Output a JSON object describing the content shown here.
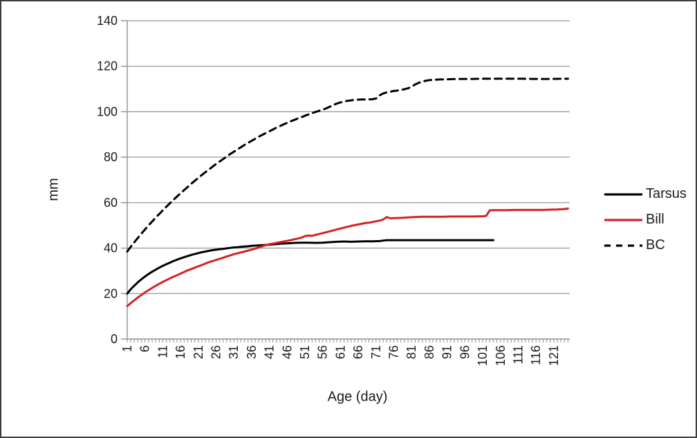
{
  "window": {
    "background": "#ffffff",
    "border_color": "#3c3c3c"
  },
  "chart_data": {
    "type": "line",
    "title": "",
    "xlabel": "Age (day)",
    "ylabel": "mm",
    "xlim": [
      1,
      125.5
    ],
    "ylim": [
      0,
      140
    ],
    "y_ticks": [
      0,
      20,
      40,
      60,
      80,
      100,
      120,
      140
    ],
    "x_tick_labels": [
      1,
      6,
      11,
      16,
      21,
      26,
      31,
      36,
      41,
      46,
      51,
      56,
      61,
      66,
      71,
      76,
      81,
      86,
      91,
      96,
      101,
      106,
      111,
      116,
      121
    ],
    "x_minor_tick_every_day": true,
    "grid": "horizontal",
    "legend_position": "right",
    "axis_color": "#8f8f8f",
    "grid_color": "#999999",
    "text_color": "#1a1a1a",
    "series": [
      {
        "name": "Tarsus",
        "color": "#000000",
        "style": "solid",
        "points": [
          [
            1,
            20.0
          ],
          [
            2,
            21.9
          ],
          [
            3,
            23.5
          ],
          [
            4,
            25.0
          ],
          [
            5,
            26.3
          ],
          [
            6,
            27.5
          ],
          [
            7,
            28.6
          ],
          [
            8,
            29.6
          ],
          [
            9,
            30.5
          ],
          [
            10,
            31.4
          ],
          [
            11,
            32.2
          ],
          [
            12,
            32.9
          ],
          [
            13,
            33.6
          ],
          [
            14,
            34.3
          ],
          [
            15,
            34.9
          ],
          [
            16,
            35.5
          ],
          [
            17,
            36.0
          ],
          [
            18,
            36.5
          ],
          [
            19,
            37.0
          ],
          [
            20,
            37.4
          ],
          [
            21,
            37.8
          ],
          [
            22,
            38.2
          ],
          [
            23,
            38.5
          ],
          [
            24,
            38.8
          ],
          [
            25,
            39.1
          ],
          [
            26,
            39.3
          ],
          [
            27,
            39.5
          ],
          [
            28,
            39.7
          ],
          [
            29,
            39.9
          ],
          [
            30,
            40.1
          ],
          [
            31,
            40.3
          ],
          [
            32,
            40.4
          ],
          [
            33,
            40.6
          ],
          [
            34,
            40.7
          ],
          [
            35,
            40.8
          ],
          [
            36,
            41.0
          ],
          [
            37,
            41.1
          ],
          [
            38,
            41.2
          ],
          [
            39,
            41.3
          ],
          [
            40,
            41.4
          ],
          [
            42,
            41.6
          ],
          [
            44,
            41.9
          ],
          [
            46,
            42.1
          ],
          [
            48,
            42.3
          ],
          [
            50,
            42.4
          ],
          [
            52,
            42.4
          ],
          [
            54,
            42.3
          ],
          [
            56,
            42.4
          ],
          [
            58,
            42.6
          ],
          [
            60,
            42.8
          ],
          [
            62,
            42.9
          ],
          [
            64,
            42.8
          ],
          [
            66,
            42.9
          ],
          [
            68,
            43.0
          ],
          [
            70,
            43.0
          ],
          [
            72,
            43.1
          ],
          [
            73,
            43.3
          ],
          [
            74,
            43.5
          ],
          [
            76,
            43.5
          ],
          [
            80,
            43.5
          ],
          [
            84,
            43.5
          ],
          [
            88,
            43.5
          ],
          [
            92,
            43.5
          ],
          [
            96,
            43.5
          ],
          [
            100,
            43.5
          ],
          [
            104,
            43.5
          ]
        ]
      },
      {
        "name": "Bill",
        "color": "#d42226",
        "style": "solid",
        "points": [
          [
            1,
            14.5
          ],
          [
            2,
            15.8
          ],
          [
            3,
            17.1
          ],
          [
            4,
            18.3
          ],
          [
            5,
            19.4
          ],
          [
            6,
            20.5
          ],
          [
            7,
            21.5
          ],
          [
            8,
            22.5
          ],
          [
            9,
            23.4
          ],
          [
            10,
            24.3
          ],
          [
            11,
            25.1
          ],
          [
            12,
            25.9
          ],
          [
            13,
            26.7
          ],
          [
            14,
            27.4
          ],
          [
            15,
            28.1
          ],
          [
            16,
            28.8
          ],
          [
            17,
            29.5
          ],
          [
            18,
            30.2
          ],
          [
            19,
            30.8
          ],
          [
            20,
            31.4
          ],
          [
            21,
            32.0
          ],
          [
            22,
            32.6
          ],
          [
            23,
            33.2
          ],
          [
            24,
            33.8
          ],
          [
            25,
            34.3
          ],
          [
            26,
            34.8
          ],
          [
            27,
            35.3
          ],
          [
            28,
            35.8
          ],
          [
            29,
            36.3
          ],
          [
            30,
            36.8
          ],
          [
            31,
            37.3
          ],
          [
            32,
            37.7
          ],
          [
            33,
            38.1
          ],
          [
            34,
            38.5
          ],
          [
            35,
            38.9
          ],
          [
            36,
            39.3
          ],
          [
            37,
            39.8
          ],
          [
            38,
            40.3
          ],
          [
            39,
            40.8
          ],
          [
            40,
            41.3
          ],
          [
            41,
            41.7
          ],
          [
            42,
            42.0
          ],
          [
            43,
            42.3
          ],
          [
            44,
            42.6
          ],
          [
            45,
            42.9
          ],
          [
            46,
            43.2
          ],
          [
            47,
            43.5
          ],
          [
            48,
            43.9
          ],
          [
            49,
            44.2
          ],
          [
            50,
            44.6
          ],
          [
            51,
            45.3
          ],
          [
            52,
            45.5
          ],
          [
            53,
            45.4
          ],
          [
            54,
            45.8
          ],
          [
            55,
            46.2
          ],
          [
            56,
            46.6
          ],
          [
            57,
            47.0
          ],
          [
            58,
            47.4
          ],
          [
            59,
            47.8
          ],
          [
            60,
            48.2
          ],
          [
            61,
            48.6
          ],
          [
            62,
            49.0
          ],
          [
            63,
            49.4
          ],
          [
            64,
            49.8
          ],
          [
            65,
            50.1
          ],
          [
            66,
            50.4
          ],
          [
            67,
            50.7
          ],
          [
            68,
            51.0
          ],
          [
            69,
            51.2
          ],
          [
            70,
            51.5
          ],
          [
            71,
            51.8
          ],
          [
            72,
            52.1
          ],
          [
            73,
            52.6
          ],
          [
            74,
            53.7
          ],
          [
            75,
            53.1
          ],
          [
            76,
            53.2
          ],
          [
            78,
            53.3
          ],
          [
            80,
            53.5
          ],
          [
            82,
            53.7
          ],
          [
            84,
            53.8
          ],
          [
            86,
            53.8
          ],
          [
            88,
            53.8
          ],
          [
            90,
            53.8
          ],
          [
            92,
            53.9
          ],
          [
            94,
            53.9
          ],
          [
            96,
            53.9
          ],
          [
            98,
            53.9
          ],
          [
            100,
            54.0
          ],
          [
            101,
            54.0
          ],
          [
            102,
            54.2
          ],
          [
            103,
            56.6
          ],
          [
            104,
            56.7
          ],
          [
            106,
            56.7
          ],
          [
            108,
            56.7
          ],
          [
            110,
            56.8
          ],
          [
            112,
            56.8
          ],
          [
            114,
            56.8
          ],
          [
            116,
            56.8
          ],
          [
            118,
            56.8
          ],
          [
            120,
            56.9
          ],
          [
            122,
            57.0
          ],
          [
            124,
            57.2
          ],
          [
            125,
            57.4
          ]
        ]
      },
      {
        "name": "BC",
        "color": "#000000",
        "style": "dashed",
        "points": [
          [
            1,
            38.5
          ],
          [
            2,
            40.6
          ],
          [
            3,
            42.6
          ],
          [
            4,
            44.5
          ],
          [
            5,
            46.4
          ],
          [
            6,
            48.2
          ],
          [
            7,
            50.0
          ],
          [
            8,
            51.7
          ],
          [
            9,
            53.4
          ],
          [
            10,
            55.0
          ],
          [
            11,
            56.6
          ],
          [
            12,
            58.2
          ],
          [
            13,
            59.7
          ],
          [
            14,
            61.2
          ],
          [
            15,
            62.7
          ],
          [
            16,
            64.1
          ],
          [
            17,
            65.5
          ],
          [
            18,
            66.9
          ],
          [
            19,
            68.3
          ],
          [
            20,
            69.6
          ],
          [
            21,
            70.9
          ],
          [
            22,
            72.2
          ],
          [
            23,
            73.4
          ],
          [
            24,
            74.6
          ],
          [
            25,
            75.8
          ],
          [
            26,
            77.0
          ],
          [
            27,
            78.1
          ],
          [
            28,
            79.2
          ],
          [
            29,
            80.3
          ],
          [
            30,
            81.4
          ],
          [
            31,
            82.4
          ],
          [
            32,
            83.4
          ],
          [
            33,
            84.4
          ],
          [
            34,
            85.4
          ],
          [
            35,
            86.3
          ],
          [
            36,
            87.2
          ],
          [
            37,
            88.1
          ],
          [
            38,
            89.0
          ],
          [
            39,
            89.8
          ],
          [
            40,
            90.6
          ],
          [
            41,
            91.4
          ],
          [
            42,
            92.2
          ],
          [
            43,
            93.0
          ],
          [
            44,
            93.7
          ],
          [
            45,
            94.4
          ],
          [
            46,
            95.1
          ],
          [
            47,
            95.8
          ],
          [
            48,
            96.4
          ],
          [
            49,
            97.0
          ],
          [
            50,
            97.6
          ],
          [
            51,
            98.2
          ],
          [
            52,
            98.8
          ],
          [
            53,
            99.4
          ],
          [
            54,
            99.9
          ],
          [
            55,
            100.4
          ],
          [
            56,
            100.9
          ],
          [
            57,
            101.5
          ],
          [
            58,
            102.2
          ],
          [
            59,
            103.0
          ],
          [
            60,
            103.6
          ],
          [
            61,
            104.1
          ],
          [
            62,
            104.5
          ],
          [
            63,
            104.8
          ],
          [
            64,
            105.0
          ],
          [
            65,
            105.2
          ],
          [
            66,
            105.3
          ],
          [
            67,
            105.4
          ],
          [
            68,
            105.4
          ],
          [
            69,
            105.4
          ],
          [
            70,
            105.5
          ],
          [
            71,
            105.8
          ],
          [
            72,
            107.2
          ],
          [
            73,
            108.0
          ],
          [
            74,
            108.5
          ],
          [
            75,
            108.8
          ],
          [
            76,
            109.1
          ],
          [
            77,
            109.3
          ],
          [
            78,
            109.6
          ],
          [
            79,
            109.9
          ],
          [
            80,
            110.3
          ],
          [
            81,
            111.0
          ],
          [
            82,
            112.0
          ],
          [
            83,
            112.7
          ],
          [
            84,
            113.2
          ],
          [
            85,
            113.6
          ],
          [
            86,
            113.9
          ],
          [
            87,
            114.0
          ],
          [
            88,
            114.1
          ],
          [
            89,
            114.2
          ],
          [
            90,
            114.2
          ],
          [
            92,
            114.3
          ],
          [
            94,
            114.4
          ],
          [
            96,
            114.4
          ],
          [
            98,
            114.4
          ],
          [
            100,
            114.5
          ],
          [
            104,
            114.5
          ],
          [
            108,
            114.5
          ],
          [
            112,
            114.5
          ],
          [
            116,
            114.4
          ],
          [
            120,
            114.4
          ],
          [
            125,
            114.5
          ]
        ]
      }
    ]
  }
}
